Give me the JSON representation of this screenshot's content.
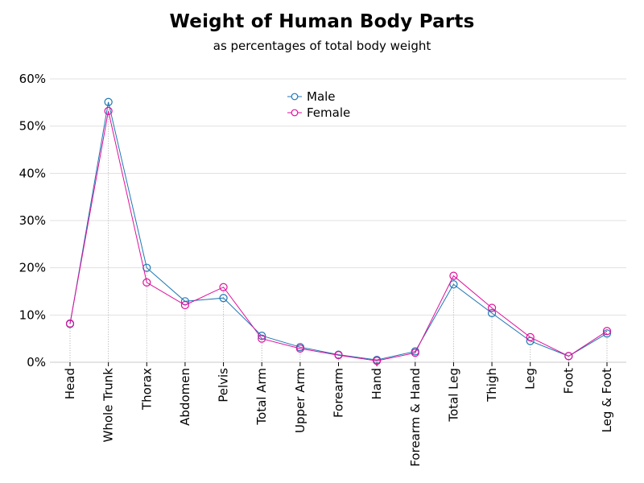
{
  "chart_data": {
    "type": "line",
    "title": "Weight of Human Body Parts",
    "subtitle": "as percentages of total body weight",
    "xlabel": "",
    "ylabel": "",
    "categories": [
      "Head",
      "Whole Trunk",
      "Thorax",
      "Abdomen",
      "Pelvis",
      "Total Arm",
      "Upper Arm",
      "Forearm",
      "Hand",
      "Forearm & Hand",
      "Total Leg",
      "Thigh",
      "Leg",
      "Foot",
      "Leg & Foot"
    ],
    "ylim": [
      0,
      60
    ],
    "yticks": [
      0,
      10,
      20,
      30,
      40,
      50,
      60
    ],
    "ytick_format": "%",
    "grid": true,
    "legend_position": "top-center",
    "series": [
      {
        "name": "Male",
        "color": "#1f77b4",
        "marker": "open-circle",
        "values": [
          8.1,
          55.1,
          20.0,
          12.9,
          13.6,
          5.6,
          3.2,
          1.6,
          0.5,
          2.3,
          16.5,
          10.4,
          4.5,
          1.3,
          6.1
        ]
      },
      {
        "name": "Female",
        "color": "#e0119d",
        "marker": "open-circle",
        "values": [
          8.2,
          53.2,
          16.9,
          12.1,
          15.9,
          5.0,
          2.9,
          1.5,
          0.3,
          2.0,
          18.3,
          11.5,
          5.3,
          1.3,
          6.6
        ]
      }
    ]
  }
}
